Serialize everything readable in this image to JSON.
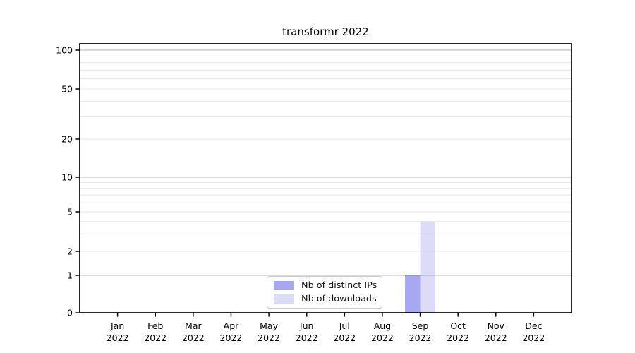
{
  "title": "transformr 2022",
  "legend": {
    "items": [
      {
        "label": "Nb of distinct IPs",
        "color": "#a8a8f2"
      },
      {
        "label": "Nb of downloads",
        "color": "#dcdcf8"
      }
    ]
  },
  "chart_data": {
    "type": "bar",
    "title": "transformr 2022",
    "categories": [
      "Jan 2022",
      "Feb 2022",
      "Mar 2022",
      "Apr 2022",
      "May 2022",
      "Jun 2022",
      "Jul 2022",
      "Aug 2022",
      "Sep 2022",
      "Oct 2022",
      "Nov 2022",
      "Dec 2022"
    ],
    "series": [
      {
        "name": "Nb of distinct IPs",
        "color": "#a8a8f2",
        "values": [
          0,
          0,
          0,
          0,
          0,
          0,
          0,
          0,
          1,
          0,
          0,
          0
        ]
      },
      {
        "name": "Nb of downloads",
        "color": "#dcdcf8",
        "values": [
          0,
          0,
          0,
          0,
          0,
          0,
          0,
          0,
          4,
          0,
          0,
          0
        ]
      }
    ],
    "xlabel": "",
    "ylabel": "",
    "y_axis": {
      "scale": "symlog",
      "ticks": [
        0,
        1,
        2,
        5,
        10,
        20,
        50,
        100
      ],
      "major_gridlines": [
        1,
        10,
        100
      ],
      "minor_gridlines": [
        2,
        3,
        4,
        5,
        6,
        7,
        8,
        9,
        20,
        30,
        40,
        50,
        60,
        70,
        80,
        90
      ],
      "ylim": [
        0,
        112
      ]
    },
    "grid": "both",
    "legend_position": "inside bottom-center"
  }
}
